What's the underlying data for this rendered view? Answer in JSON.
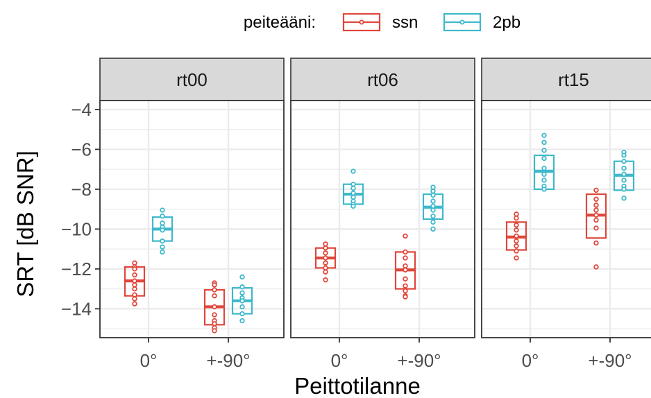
{
  "chart_data": {
    "type": "box",
    "xlabel": "Peittotilanne",
    "ylabel": "SRT [dB SNR]",
    "ylim": [
      -15.45,
      -3.55
    ],
    "yticks": [
      -4,
      -6,
      -8,
      -10,
      -12,
      -14
    ],
    "ytick_labels": [
      "−4",
      "−6",
      "−8",
      "−10",
      "−12",
      "−14"
    ],
    "categories": [
      "0°",
      "+-90°"
    ],
    "legend": {
      "title": "peiteääni:",
      "position": "top",
      "entries": [
        {
          "key": "ssn",
          "label": "ssn"
        },
        {
          "key": "2pb",
          "label": "2pb"
        }
      ]
    },
    "colors": {
      "ssn": "#E0463A",
      "2pb": "#3DB8CC"
    },
    "grid": true,
    "facets": [
      {
        "label": "rt00",
        "groups": [
          {
            "category": "0°",
            "series": "ssn",
            "q1": -13.35,
            "median": -12.6,
            "q3": -11.9,
            "points": [
              -11.7,
              -11.9,
              -12.0,
              -12.3,
              -12.6,
              -12.8,
              -13.0,
              -13.3,
              -13.5,
              -13.75
            ]
          },
          {
            "category": "0°",
            "series": "2pb",
            "q1": -10.6,
            "median": -10.0,
            "q3": -9.4,
            "points": [
              -9.05,
              -9.35,
              -9.7,
              -9.9,
              -10.05,
              -10.6,
              -10.9,
              -11.15
            ]
          },
          {
            "category": "+-90°",
            "series": "ssn",
            "q1": -14.8,
            "median": -13.9,
            "q3": -13.05,
            "points": [
              -12.7,
              -12.8,
              -13.05,
              -13.35,
              -13.9,
              -14.3,
              -14.6,
              -14.75,
              -14.95,
              -15.1
            ]
          },
          {
            "category": "+-90°",
            "series": "2pb",
            "q1": -14.25,
            "median": -13.6,
            "q3": -12.95,
            "points": [
              -12.4,
              -12.9,
              -13.2,
              -13.45,
              -13.6,
              -13.9,
              -14.25,
              -14.6
            ]
          }
        ]
      },
      {
        "label": "rt06",
        "groups": [
          {
            "category": "0°",
            "series": "ssn",
            "q1": -11.95,
            "median": -11.45,
            "q3": -10.95,
            "points": [
              -10.75,
              -10.95,
              -11.2,
              -11.45,
              -11.7,
              -11.95,
              -12.15,
              -12.55
            ]
          },
          {
            "category": "0°",
            "series": "2pb",
            "q1": -8.75,
            "median": -8.25,
            "q3": -7.75,
            "points": [
              -7.1,
              -7.75,
              -7.95,
              -8.2,
              -8.4,
              -8.6,
              -8.75,
              -8.85
            ]
          },
          {
            "category": "+-90°",
            "series": "ssn",
            "q1": -13.0,
            "median": -12.05,
            "q3": -11.15,
            "points": [
              -10.35,
              -11.15,
              -11.45,
              -11.85,
              -12.05,
              -12.5,
              -12.85,
              -13.1,
              -13.35,
              -13.4
            ]
          },
          {
            "category": "+-90°",
            "series": "2pb",
            "q1": -9.5,
            "median": -8.9,
            "q3": -8.25,
            "points": [
              -7.9,
              -8.1,
              -8.3,
              -8.6,
              -8.85,
              -9.05,
              -9.35,
              -9.65,
              -10.0
            ]
          }
        ]
      },
      {
        "label": "rt15",
        "groups": [
          {
            "category": "0°",
            "series": "ssn",
            "q1": -11.05,
            "median": -10.4,
            "q3": -9.65,
            "points": [
              -9.25,
              -9.45,
              -9.8,
              -10.05,
              -10.35,
              -10.6,
              -10.85,
              -11.1,
              -11.45
            ]
          },
          {
            "category": "0°",
            "series": "2pb",
            "q1": -8.0,
            "median": -7.1,
            "q3": -6.3,
            "points": [
              -5.3,
              -5.65,
              -6.05,
              -6.45,
              -6.95,
              -7.25,
              -7.55,
              -7.85,
              -8.0
            ]
          },
          {
            "category": "+-90°",
            "series": "ssn",
            "q1": -10.45,
            "median": -9.3,
            "q3": -8.25,
            "points": [
              -8.05,
              -8.5,
              -8.8,
              -9.05,
              -9.3,
              -9.55,
              -9.95,
              -10.7,
              -11.9
            ]
          },
          {
            "category": "+-90°",
            "series": "2pb",
            "q1": -8.05,
            "median": -7.3,
            "q3": -6.6,
            "points": [
              -6.15,
              -6.3,
              -6.6,
              -6.95,
              -7.25,
              -7.55,
              -7.85,
              -8.0,
              -8.45
            ]
          }
        ]
      }
    ]
  }
}
